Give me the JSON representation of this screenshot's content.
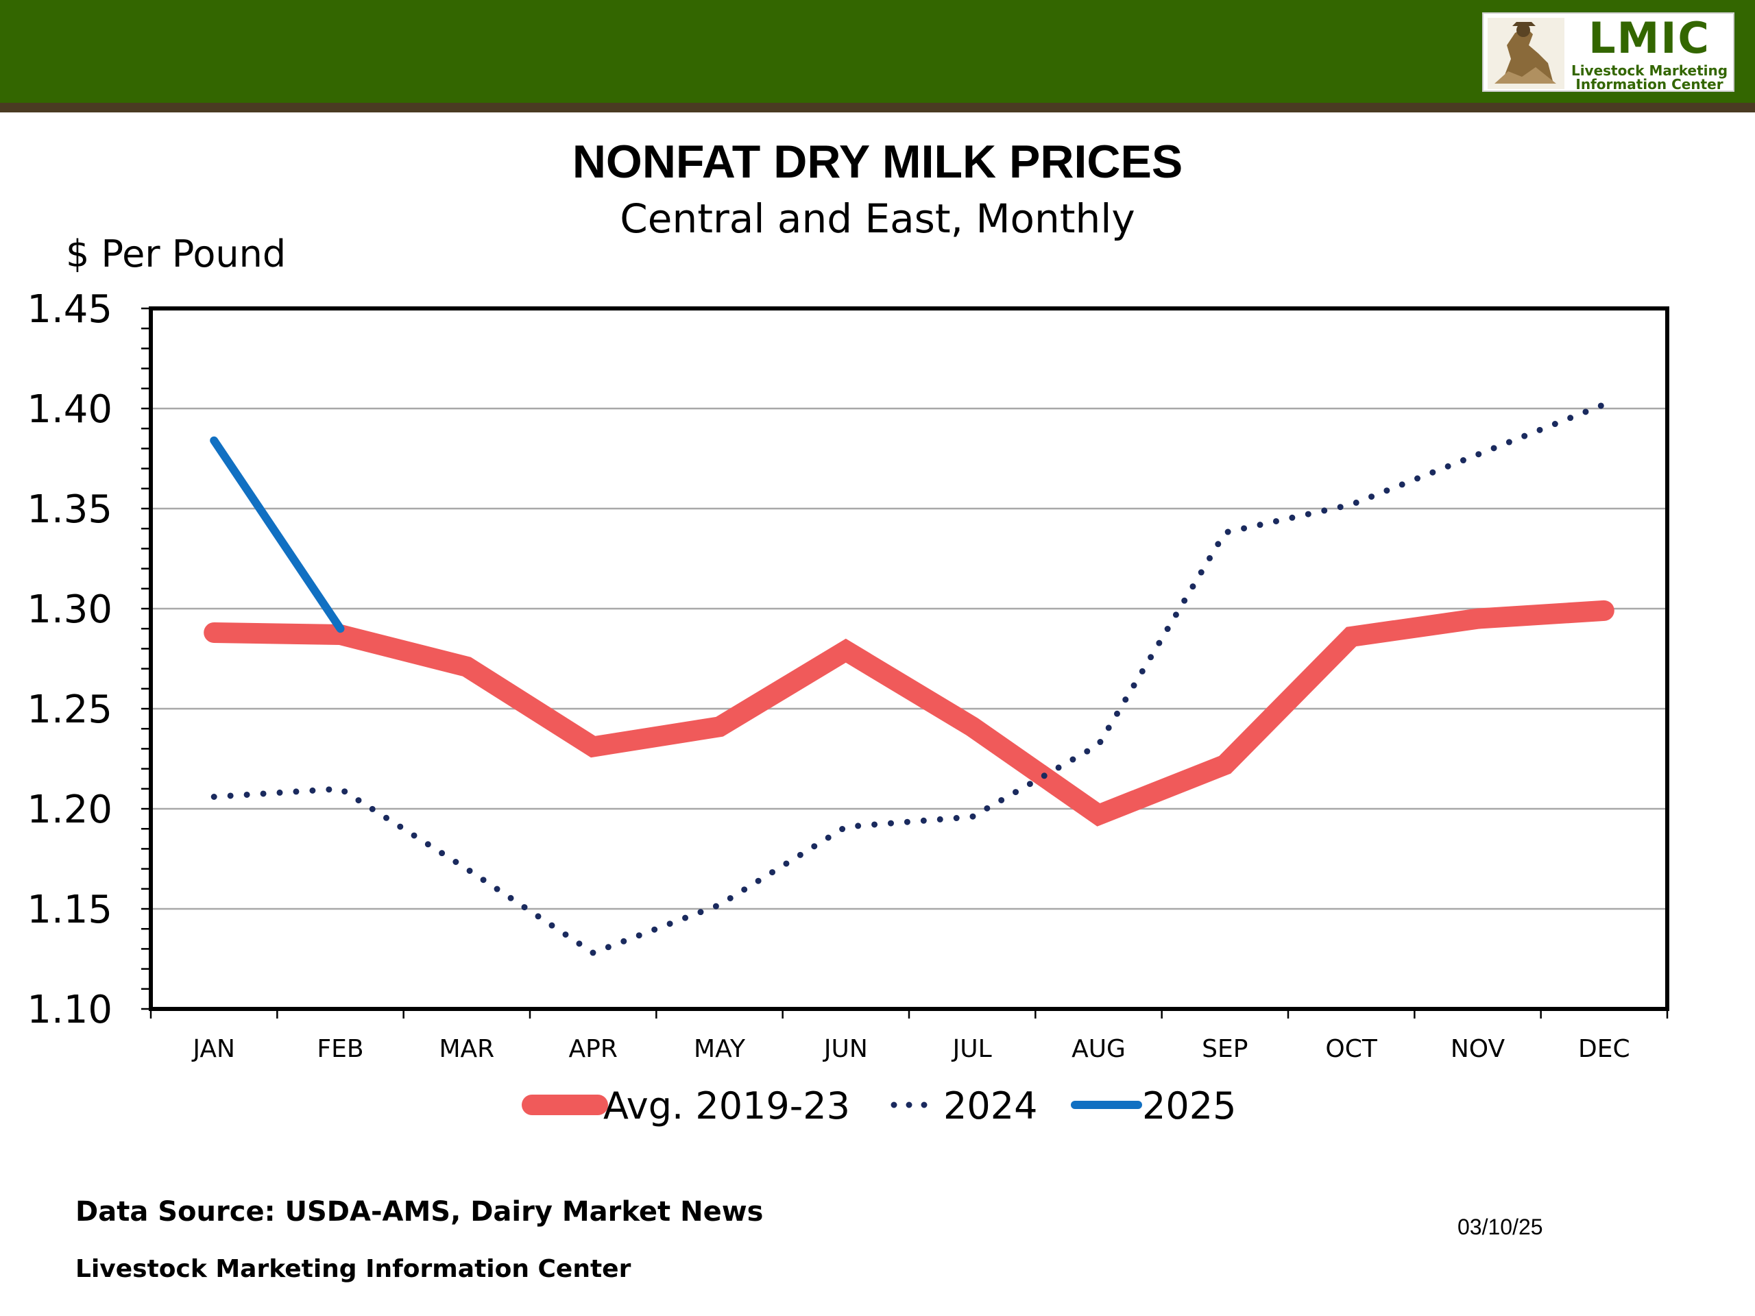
{
  "header": {
    "logo": {
      "title": "LMIC",
      "subtitle_line1": "Livestock Marketing",
      "subtitle_line2": "Information Center"
    }
  },
  "chart_data": {
    "type": "line",
    "title": "NONFAT DRY MILK PRICES",
    "subtitle": "Central and East, Monthly",
    "ylabel": "$ Per Pound",
    "xlabel": "",
    "ylim": [
      1.1,
      1.45
    ],
    "yticks": [
      "1.45",
      "1.40",
      "1.35",
      "1.30",
      "1.25",
      "1.20",
      "1.15",
      "1.10"
    ],
    "ytick_values": [
      1.45,
      1.4,
      1.35,
      1.3,
      1.25,
      1.2,
      1.15,
      1.1
    ],
    "categories": [
      "JAN",
      "FEB",
      "MAR",
      "APR",
      "MAY",
      "JUN",
      "JUL",
      "AUG",
      "SEP",
      "OCT",
      "NOV",
      "DEC"
    ],
    "grid": true,
    "legend_position": "bottom",
    "series": [
      {
        "name": "Avg. 2019-23",
        "style": "solid-thick",
        "color": "#f05a5a",
        "values": [
          1.288,
          1.287,
          1.271,
          1.231,
          1.241,
          1.279,
          1.241,
          1.197,
          1.222,
          1.286,
          1.295,
          1.299
        ]
      },
      {
        "name": "2024",
        "style": "dotted",
        "color": "#1a2a5e",
        "values": [
          1.206,
          1.21,
          1.17,
          1.128,
          1.152,
          1.191,
          1.196,
          1.232,
          1.338,
          1.352,
          1.377,
          1.402
        ]
      },
      {
        "name": "2025",
        "style": "solid",
        "color": "#1170c2",
        "values": [
          1.384,
          1.29,
          null,
          null,
          null,
          null,
          null,
          null,
          null,
          null,
          null,
          null
        ]
      }
    ]
  },
  "footer": {
    "source": "Data Source:  USDA-AMS, Dairy Market News",
    "organization": "Livestock Marketing Information Center",
    "date": "03/10/25"
  }
}
